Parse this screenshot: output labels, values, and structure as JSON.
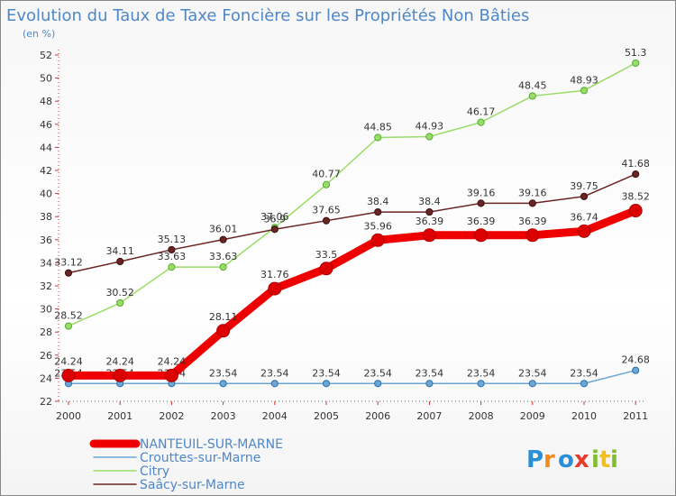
{
  "chart_data": {
    "type": "line",
    "title": "Evolution du Taux de Taxe Foncière sur les Propriétés Non Bâties",
    "subtitle": "(en %)",
    "xlabel": "",
    "ylabel": "(en %)",
    "ylim": [
      22,
      52
    ],
    "yticks": [
      22,
      24,
      26,
      28,
      30,
      32,
      34,
      36,
      38,
      40,
      42,
      44,
      46,
      48,
      50,
      52
    ],
    "x": [
      "2000",
      "2001",
      "2002",
      "2003",
      "2004",
      "2005",
      "2006",
      "2007",
      "2008",
      "2009",
      "2010",
      "2011"
    ],
    "grid": false,
    "legend_position": "bottom-left",
    "series": [
      {
        "name": "Citry",
        "color": "#99dd66",
        "values": [
          28.52,
          30.52,
          33.63,
          33.63,
          37.06,
          40.77,
          44.85,
          44.93,
          46.17,
          48.45,
          48.93,
          51.3
        ],
        "labels": [
          "28.52",
          "30.52",
          "33.63",
          "33.63",
          "37.06",
          "40.77",
          "44.85",
          "44.93",
          "46.17",
          "48.45",
          "48.93",
          "51.3"
        ]
      },
      {
        "name": "Saâcy-sur-Marne",
        "color": "#6b2424",
        "values": [
          33.12,
          34.11,
          35.13,
          36.01,
          36.9,
          37.65,
          38.4,
          38.4,
          39.16,
          39.16,
          39.75,
          41.68
        ],
        "labels": [
          "33.12",
          "34.11",
          "35.13",
          "36.01",
          "36.9",
          "37.65",
          "38.4",
          "38.4",
          "39.16",
          "39.16",
          "39.75",
          "41.68"
        ]
      },
      {
        "name": "Crouttes-sur-Marne",
        "color": "#6aa6d6",
        "values": [
          23.54,
          23.54,
          23.54,
          23.54,
          23.54,
          23.54,
          23.54,
          23.54,
          23.54,
          23.54,
          23.54,
          24.68
        ],
        "labels": [
          "23.54",
          "23.54",
          "23.54",
          "23.54",
          "23.54",
          "23.54",
          "23.54",
          "23.54",
          "23.54",
          "23.54",
          "23.54",
          "24.68"
        ]
      },
      {
        "name": "NANTEUIL-SUR-MARNE",
        "color": "#ee0000",
        "values": [
          24.24,
          24.24,
          24.24,
          28.11,
          31.76,
          33.5,
          35.96,
          36.39,
          36.39,
          36.39,
          36.74,
          38.52
        ],
        "labels": [
          "24.24",
          "24.24",
          "24.24",
          "28.11",
          "31.76",
          "33.5",
          "35.96",
          "36.39",
          "36.39",
          "36.39",
          "36.74",
          "38.52"
        ]
      }
    ],
    "legend": [
      "NANTEUIL-SUR-MARNE",
      "Crouttes-sur-Marne",
      "Citry",
      "Saâcy-sur-Marne"
    ]
  },
  "logo": {
    "text": "Proxiti",
    "letters": [
      "P",
      "r",
      "o",
      "x",
      "i",
      "t",
      "i"
    ]
  }
}
